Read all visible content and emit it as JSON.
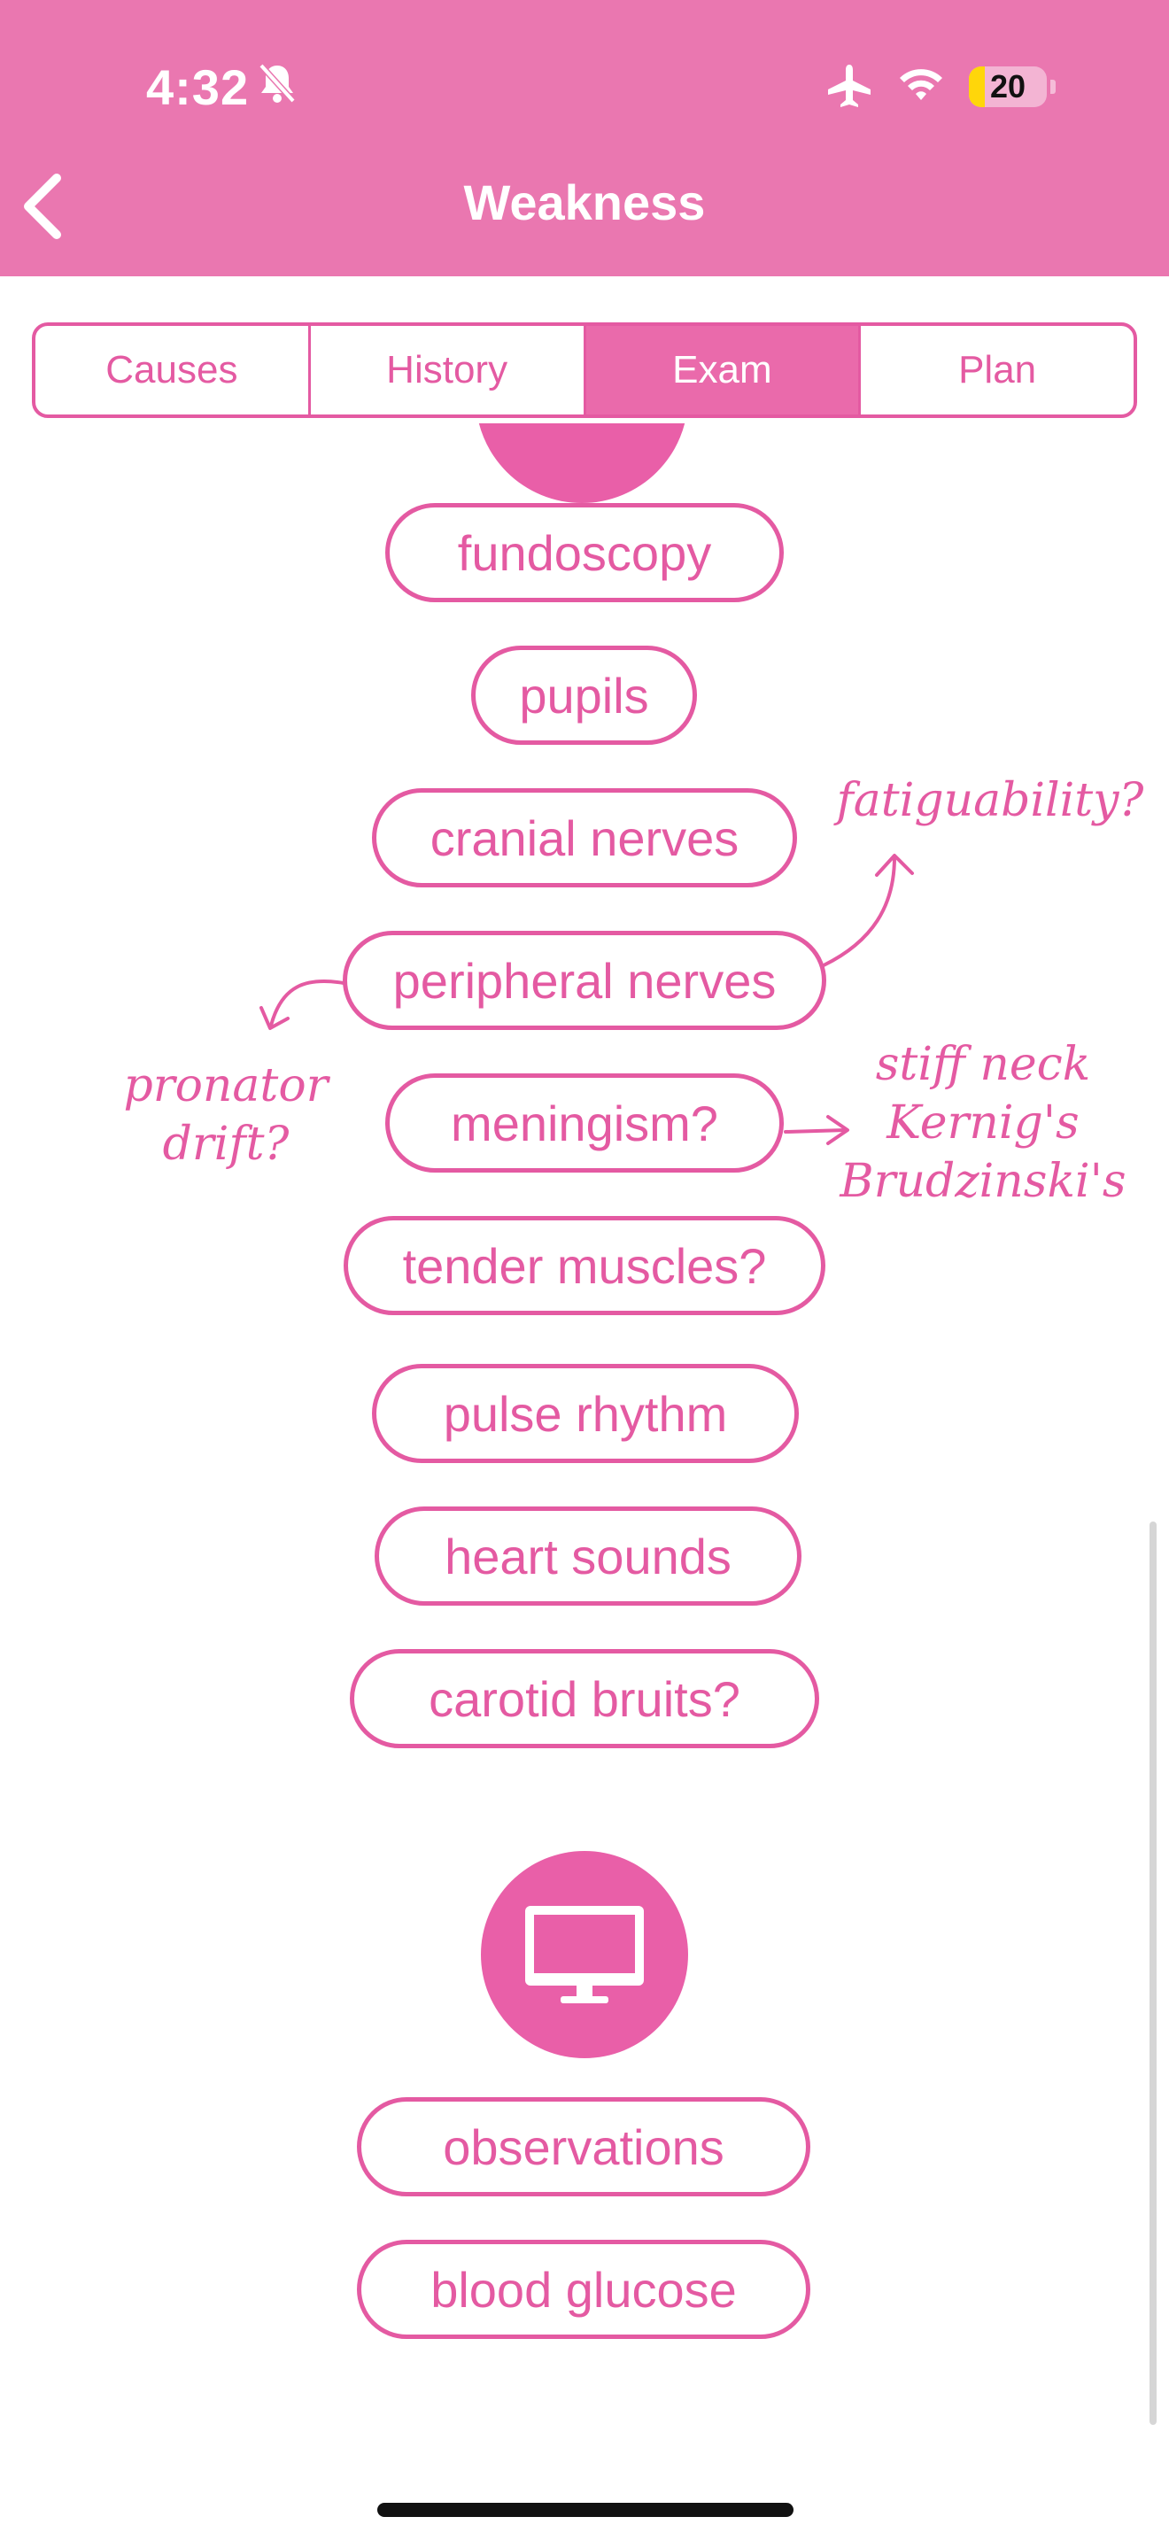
{
  "status": {
    "time": "4:32",
    "battery": "20",
    "battery_level": 0.2
  },
  "nav": {
    "title": "Weakness",
    "back_icon": "chevron-left-icon"
  },
  "tabs": [
    {
      "label": "Causes",
      "active": false
    },
    {
      "label": "History",
      "active": false
    },
    {
      "label": "Exam",
      "active": true
    },
    {
      "label": "Plan",
      "active": false
    }
  ],
  "exam_items": [
    "fundoscopy",
    "pupils",
    "cranial nerves",
    "peripheral nerves",
    "meningism?",
    "tender muscles?",
    "pulse rhythm",
    "heart sounds",
    "carotid bruits?"
  ],
  "section_icon": "monitor-icon",
  "monitor_items": [
    "observations",
    "blood glucose"
  ],
  "annotations": {
    "fatiguability": "fatiguability?",
    "pronator_line1": "pronator",
    "pronator_line2": "drift?",
    "meningism_line1": "stiff neck",
    "meningism_line2": "Kernig's",
    "meningism_line3": "Brudzinski's"
  },
  "colors": {
    "header": "#ea77b0",
    "accent": "#e45aa2",
    "circle": "#e95fa8"
  }
}
